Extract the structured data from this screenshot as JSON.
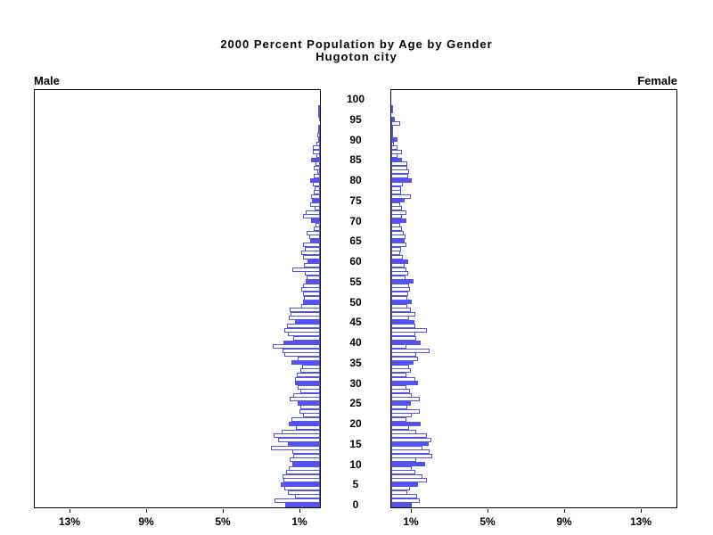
{
  "title": {
    "line1": "2000 Percent Population by Age by Gender",
    "line2": "Hugoton city"
  },
  "panel_labels": {
    "left": "Male",
    "right": "Female"
  },
  "colors": {
    "bar_fill": "#5252EE",
    "bar_outline": "#5252EE",
    "axis": "#000000",
    "background": "#FFFFFF",
    "text": "#000000"
  },
  "axes": {
    "percent_axis": {
      "max_percent": 14.84,
      "tick_values": [
        13,
        9,
        5,
        1
      ],
      "male_tick_labels": [
        "13%",
        "9%",
        "5%",
        "1%"
      ],
      "female_tick_labels": [
        "1%",
        "5%",
        "9%",
        "13%"
      ]
    },
    "age_axis": {
      "min": 0,
      "max": 100,
      "step": 1,
      "tick_interval": 5,
      "tick_labels": [
        "100",
        "95",
        "90",
        "85",
        "80",
        "75",
        "70",
        "65",
        "60",
        "55",
        "50",
        "45",
        "40",
        "35",
        "30",
        "25",
        "20",
        "15",
        "10",
        "5",
        "0"
      ]
    }
  },
  "chart_data": {
    "type": "bar",
    "subtype": "population-pyramid",
    "title": "2000 Percent Population by Age by Gender",
    "subtitle": "Hugoton city",
    "units": "percent of population",
    "age_min": 0,
    "age_max": 100,
    "age_step": 1,
    "highlight_every_nth_age": 5,
    "x_axis_ticks_percent": [
      1,
      5,
      9,
      13
    ],
    "x_axis_range_percent": [
      0,
      14.84
    ],
    "legend_position": "none",
    "grid": false,
    "series": [
      {
        "name": "Male",
        "values": [
          1.8,
          2.35,
          1.3,
          1.69,
          1.84,
          2.03,
          1.92,
          1.94,
          1.75,
          1.6,
          1.46,
          1.57,
          1.38,
          1.46,
          2.57,
          1.66,
          2.18,
          2.4,
          2.0,
          1.24,
          1.6,
          1.47,
          0.88,
          1.06,
          1.0,
          1.15,
          1.57,
          1.38,
          1.0,
          1.15,
          1.3,
          1.3,
          1.2,
          1.0,
          0.92,
          1.47,
          1.15,
          1.84,
          1.94,
          2.46,
          1.89,
          1.38,
          1.66,
          1.84,
          1.7,
          1.3,
          1.6,
          1.52,
          1.57,
          0.97,
          0.88,
          0.83,
          0.88,
          0.97,
          0.88,
          0.74,
          0.69,
          0.78,
          1.43,
          0.83,
          0.65,
          0.88,
          0.97,
          0.78,
          0.88,
          0.51,
          0.55,
          0.69,
          0.32,
          0.23,
          0.46,
          0.88,
          0.74,
          0.28,
          0.51,
          0.41,
          0.46,
          0.32,
          0.28,
          0.37,
          0.51,
          0.32,
          0.14,
          0.32,
          0.23,
          0.46,
          0.18,
          0.37,
          0.37,
          0.18,
          0.09,
          0.14,
          0.05,
          0.09,
          0,
          0.05,
          0.05,
          0.09,
          0.05,
          0,
          0
        ]
      },
      {
        "name": "Female",
        "values": [
          1.06,
          1.47,
          1.34,
          0.83,
          0.97,
          1.38,
          1.84,
          1.6,
          1.24,
          1.06,
          1.75,
          1.3,
          2.12,
          2.0,
          1.6,
          1.93,
          2.07,
          1.84,
          1.3,
          0.92,
          1.52,
          0.78,
          1.06,
          1.47,
          0.83,
          1.0,
          1.47,
          1.06,
          0.97,
          0.78,
          1.38,
          1.24,
          0.78,
          1.0,
          0.92,
          1.15,
          1.38,
          1.3,
          2.0,
          0.78,
          1.52,
          1.3,
          1.24,
          1.84,
          1.24,
          1.2,
          0.92,
          1.24,
          1.0,
          0.83,
          1.06,
          0.83,
          0.88,
          0.97,
          0.92,
          1.15,
          0.74,
          0.88,
          0.78,
          0.69,
          0.88,
          0.6,
          0.46,
          0.5,
          0.78,
          0.69,
          0.74,
          0.65,
          0.55,
          0.46,
          0.78,
          0.55,
          0.78,
          0.55,
          0.46,
          0.69,
          1.0,
          0.5,
          0.5,
          0.6,
          1.06,
          0.88,
          0.92,
          0.83,
          0.83,
          0.55,
          0.32,
          0.55,
          0.32,
          0.14,
          0.32,
          0.05,
          0.09,
          0.09,
          0.46,
          0.18,
          0,
          0.09,
          0.05,
          0,
          0
        ]
      }
    ]
  }
}
